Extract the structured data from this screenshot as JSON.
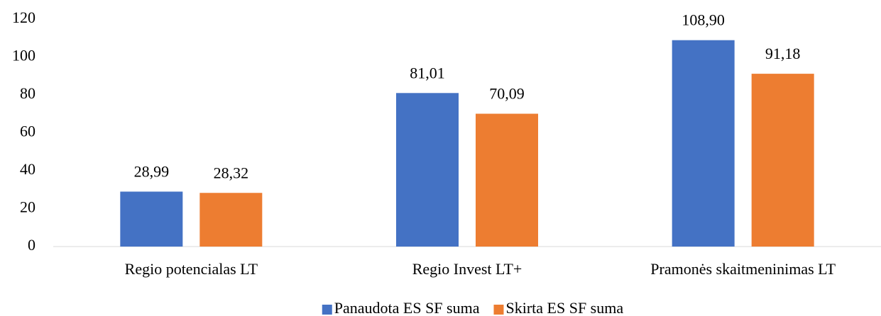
{
  "chart_data": {
    "type": "bar",
    "categories": [
      "Regio potencialas LT",
      "Regio Invest LT+",
      "Pramonės skaitmeninimas LT"
    ],
    "series": [
      {
        "name": "Panaudota ES SF suma",
        "color": "#4472c4",
        "values": [
          28.99,
          81.01,
          108.9
        ],
        "value_labels": [
          "28,99",
          "81,01",
          "108,90"
        ]
      },
      {
        "name": "Skirta ES SF suma",
        "color": "#ed7d31",
        "values": [
          28.32,
          70.09,
          91.18
        ],
        "value_labels": [
          "28,32",
          "70,09",
          "91,18"
        ]
      }
    ],
    "ylim": [
      0,
      120
    ],
    "yticks": [
      0,
      20,
      40,
      60,
      80,
      100,
      120
    ],
    "grid": false,
    "legend": "bottom"
  }
}
